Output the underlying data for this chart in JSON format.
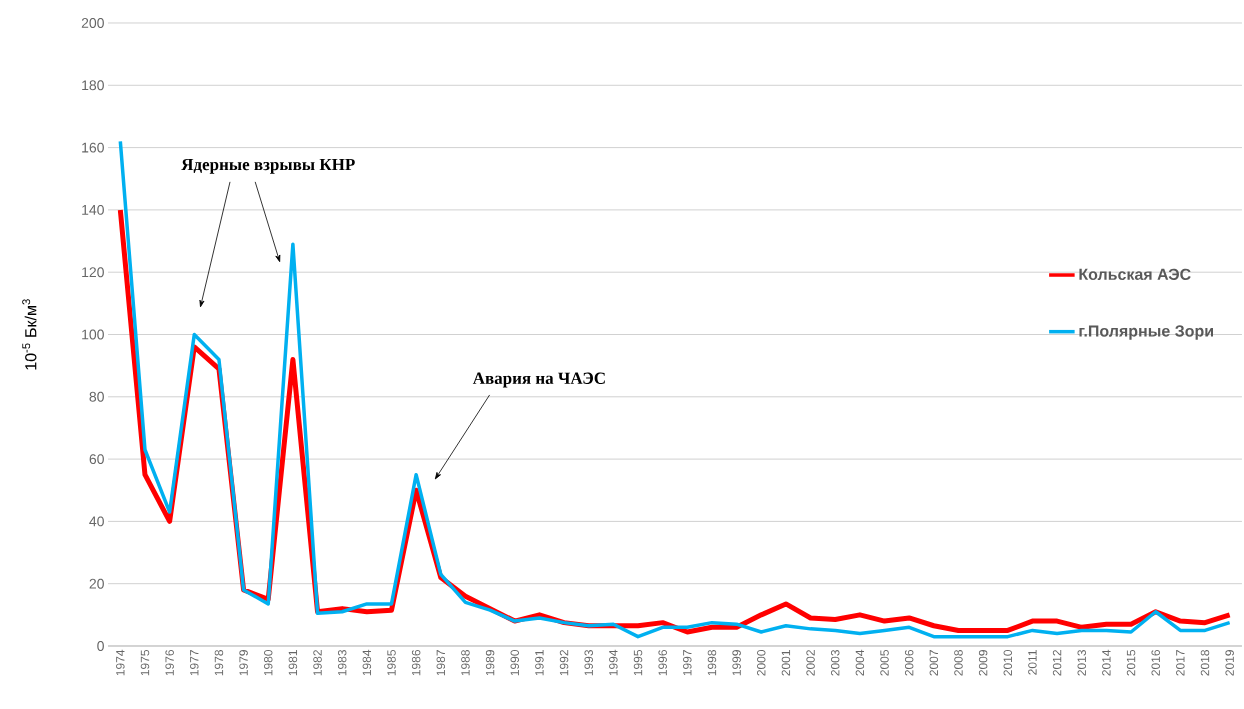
{
  "chart_data": {
    "type": "line",
    "ylabel": "10$^{-5}$ Бк/м$^{3}$",
    "categories": [
      "1974",
      "1975",
      "1976",
      "1977",
      "1978",
      "1979",
      "1980",
      "1981",
      "1982",
      "1983",
      "1984",
      "1985",
      "1986",
      "1987",
      "1988",
      "1989",
      "1990",
      "1991",
      "1992",
      "1993",
      "1994",
      "1995",
      "1996",
      "1997",
      "1998",
      "1999",
      "2000",
      "2001",
      "2002",
      "2003",
      "2004",
      "2005",
      "2006",
      "2007",
      "2008",
      "2009",
      "2010",
      "2011",
      "2012",
      "2013",
      "2014",
      "2015",
      "2016",
      "2017",
      "2018",
      "2019"
    ],
    "series": [
      {
        "name": "Кольская АЭС",
        "color": "#ff0000",
        "values": [
          140,
          55,
          40,
          96,
          89,
          18,
          15,
          92,
          11,
          12,
          11,
          11.5,
          50,
          22,
          16,
          12,
          8,
          10,
          7.5,
          6.5,
          6.5,
          6.5,
          7.5,
          4.5,
          6,
          6,
          10,
          13.5,
          9,
          8.5,
          10,
          8,
          9,
          6.5,
          5,
          5,
          5,
          8,
          8,
          6,
          7,
          7,
          11,
          8,
          7.5,
          10
        ]
      },
      {
        "name": "г.Полярные Зори",
        "color": "#00b0f0",
        "values": [
          162,
          63,
          43,
          100,
          92,
          18,
          13.5,
          129,
          10.5,
          11,
          13.5,
          13.5,
          55,
          23,
          14,
          11.5,
          8,
          9,
          7.5,
          6.5,
          7,
          3,
          6,
          6,
          7.5,
          7,
          4.5,
          6.5,
          5.5,
          5,
          4,
          5,
          6,
          3,
          3,
          3,
          3,
          5,
          4,
          5,
          5,
          4.5,
          11,
          5,
          5,
          7.5
        ]
      }
    ],
    "ylim": [
      0,
      200
    ],
    "yticks": [
      0,
      20,
      40,
      60,
      80,
      100,
      120,
      140,
      160,
      180,
      200
    ],
    "grid": "y",
    "legend": "right",
    "line_style": "solid",
    "annotations": [
      "Ядерные взрывы КНР",
      "Авария на ЧАЭС"
    ]
  }
}
